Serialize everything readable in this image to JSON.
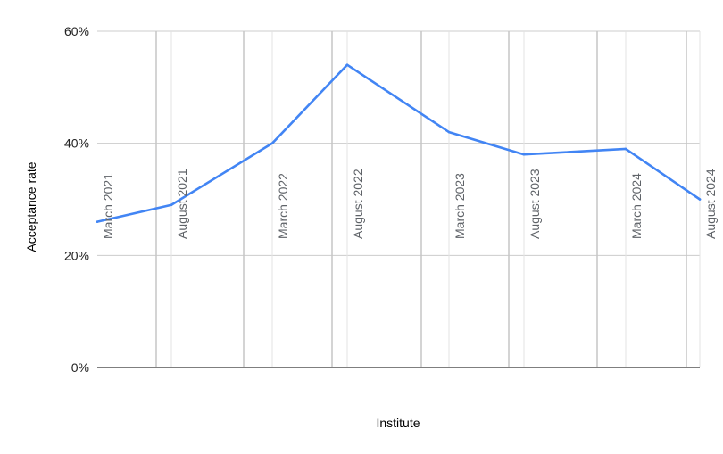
{
  "chart_data": {
    "type": "line",
    "title": "",
    "xlabel": "Institute",
    "ylabel": "Acceptance rate",
    "ylim": [
      0,
      60
    ],
    "yticks": [
      0,
      20,
      40,
      60
    ],
    "ytick_labels": [
      "0%",
      "20%",
      "40%",
      "60%"
    ],
    "categories": [
      "March 2021",
      "August 2021",
      "March 2022",
      "August 2022",
      "March 2023",
      "August 2023",
      "March 2024",
      "August 2024"
    ],
    "series": [
      {
        "values": [
          26,
          29,
          40,
          54,
          42,
          38,
          39,
          30
        ],
        "color": "#4285f4"
      }
    ],
    "grid": true,
    "legend": "none"
  }
}
